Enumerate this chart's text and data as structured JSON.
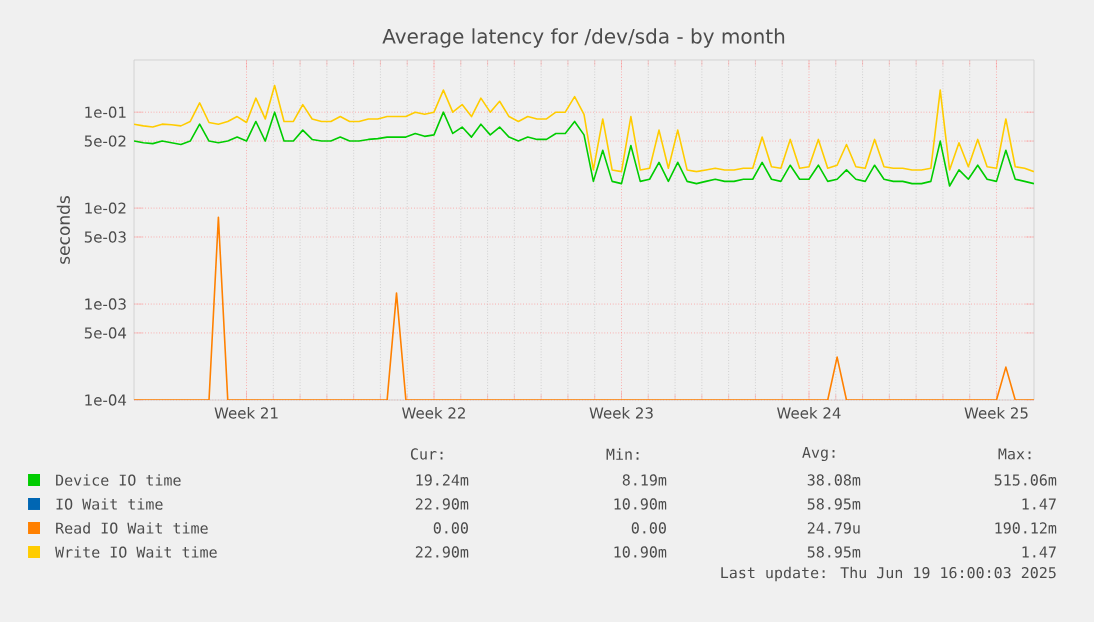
{
  "chart_data": {
    "type": "line",
    "title": "Average latency for /dev/sda - by month",
    "ylabel": "seconds",
    "log": "y",
    "grid": true,
    "legend": "bottom",
    "categories": [
      null,
      null,
      null,
      null,
      null,
      null,
      null,
      null,
      null,
      null,
      null,
      null,
      "Week 21",
      null,
      null,
      null,
      null,
      null,
      null,
      null,
      null,
      null,
      null,
      null,
      null,
      null,
      null,
      null,
      null,
      null,
      null,
      null,
      "Week 22",
      null,
      null,
      null,
      null,
      null,
      null,
      null,
      null,
      null,
      null,
      null,
      null,
      null,
      null,
      null,
      null,
      null,
      null,
      null,
      "Week 23",
      null,
      null,
      null,
      null,
      null,
      null,
      null,
      null,
      null,
      null,
      null,
      null,
      null,
      null,
      null,
      null,
      null,
      null,
      null,
      "Week 24",
      null,
      null,
      null,
      null,
      null,
      null,
      null,
      null,
      null,
      null,
      null,
      null,
      null,
      null,
      null,
      null,
      null,
      null,
      null,
      "Week 25",
      null,
      null,
      null,
      null
    ],
    "ylim": [
      0.0001,
      0.35
    ],
    "yticks": [
      {
        "value": 0.0001,
        "label": "1e-04"
      },
      {
        "value": 0.0005,
        "label": "5e-04"
      },
      {
        "value": 0.001,
        "label": "1e-03"
      },
      {
        "value": 0.005,
        "label": "5e-03"
      },
      {
        "value": 0.01,
        "label": "1e-02"
      },
      {
        "value": 0.05,
        "label": "5e-02"
      },
      {
        "value": 0.1,
        "label": "1e-01"
      }
    ],
    "series": [
      {
        "name": "Device IO time",
        "color": "#00cc00",
        "values": [
          0.05,
          0.048,
          0.047,
          0.05,
          0.048,
          0.046,
          0.05,
          0.075,
          0.05,
          0.048,
          0.05,
          0.055,
          0.05,
          0.08,
          0.05,
          0.1,
          0.05,
          0.05,
          0.065,
          0.052,
          0.05,
          0.05,
          0.055,
          0.05,
          0.05,
          0.052,
          0.053,
          0.055,
          0.055,
          0.055,
          0.06,
          0.056,
          0.058,
          0.1,
          0.06,
          0.07,
          0.055,
          0.075,
          0.058,
          0.07,
          0.055,
          0.05,
          0.055,
          0.052,
          0.052,
          0.06,
          0.06,
          0.08,
          0.058,
          0.019,
          0.04,
          0.019,
          0.018,
          0.045,
          0.019,
          0.02,
          0.03,
          0.019,
          0.03,
          0.019,
          0.018,
          0.019,
          0.02,
          0.019,
          0.019,
          0.02,
          0.02,
          0.03,
          0.02,
          0.019,
          0.028,
          0.02,
          0.02,
          0.028,
          0.019,
          0.02,
          0.025,
          0.02,
          0.019,
          0.028,
          0.02,
          0.019,
          0.019,
          0.018,
          0.018,
          0.019,
          0.05,
          0.017,
          0.025,
          0.02,
          0.028,
          0.02,
          0.019,
          0.04,
          0.02,
          0.019,
          0.018
        ]
      },
      {
        "name": "IO Wait time",
        "color": "#0066b3",
        "values": [
          null,
          null,
          null,
          null,
          null,
          null,
          null,
          null,
          null,
          null,
          null,
          null,
          null,
          null,
          null,
          null,
          null,
          null,
          null,
          null,
          null,
          null,
          null,
          null,
          null,
          null,
          null,
          null,
          null,
          null,
          null,
          null,
          null,
          null,
          null,
          null,
          null,
          null,
          null,
          null,
          null,
          null,
          null,
          null,
          null,
          null,
          null,
          null,
          null,
          null,
          null,
          null,
          null,
          null,
          null,
          null,
          null,
          null,
          null,
          null,
          null,
          null,
          null,
          null,
          null,
          null,
          null,
          null,
          null,
          null,
          null,
          null,
          null,
          null,
          null,
          null,
          null,
          null,
          null,
          null,
          null,
          null,
          null,
          null,
          null,
          null,
          null,
          null,
          null,
          null,
          null,
          null,
          null,
          null,
          null,
          null,
          null
        ]
      },
      {
        "name": "Read IO Wait time",
        "color": "#ff8000",
        "values": [
          0.0001,
          0.0001,
          0.0001,
          0.0001,
          0.0001,
          0.0001,
          0.0001,
          0.0001,
          0.0001,
          0.008,
          0.0001,
          0.0001,
          0.0001,
          0.0001,
          0.0001,
          0.0001,
          0.0001,
          0.0001,
          0.0001,
          0.0001,
          0.0001,
          0.0001,
          0.0001,
          0.0001,
          0.0001,
          0.0001,
          0.0001,
          0.0001,
          0.0013,
          0.0001,
          0.0001,
          0.0001,
          0.0001,
          0.0001,
          0.0001,
          0.0001,
          0.0001,
          0.0001,
          0.0001,
          0.0001,
          0.0001,
          0.0001,
          0.0001,
          0.0001,
          0.0001,
          0.0001,
          0.0001,
          0.0001,
          0.0001,
          0.0001,
          0.0001,
          0.0001,
          0.0001,
          0.0001,
          0.0001,
          0.0001,
          0.0001,
          0.0001,
          0.0001,
          0.0001,
          0.0001,
          0.0001,
          0.0001,
          0.0001,
          0.0001,
          0.0001,
          0.0001,
          0.0001,
          0.0001,
          0.0001,
          0.0001,
          0.0001,
          0.0001,
          0.0001,
          0.0001,
          0.00028,
          0.0001,
          0.0001,
          0.0001,
          0.0001,
          0.0001,
          0.0001,
          0.0001,
          0.0001,
          0.0001,
          0.0001,
          0.0001,
          0.0001,
          0.0001,
          0.0001,
          0.0001,
          0.0001,
          0.0001,
          0.00022,
          0.0001,
          0.0001,
          0.0001
        ]
      },
      {
        "name": "Write IO Wait time",
        "color": "#ffcc00",
        "values": [
          0.075,
          0.072,
          0.07,
          0.075,
          0.074,
          0.072,
          0.08,
          0.125,
          0.078,
          0.075,
          0.08,
          0.09,
          0.078,
          0.14,
          0.085,
          0.19,
          0.08,
          0.08,
          0.12,
          0.085,
          0.08,
          0.08,
          0.09,
          0.08,
          0.08,
          0.085,
          0.085,
          0.09,
          0.09,
          0.09,
          0.1,
          0.095,
          0.1,
          0.17,
          0.1,
          0.12,
          0.09,
          0.14,
          0.1,
          0.13,
          0.09,
          0.08,
          0.09,
          0.085,
          0.085,
          0.1,
          0.1,
          0.145,
          0.095,
          0.025,
          0.085,
          0.025,
          0.024,
          0.09,
          0.025,
          0.026,
          0.065,
          0.026,
          0.065,
          0.025,
          0.024,
          0.025,
          0.026,
          0.025,
          0.025,
          0.026,
          0.026,
          0.055,
          0.027,
          0.026,
          0.052,
          0.026,
          0.027,
          0.052,
          0.026,
          0.028,
          0.046,
          0.027,
          0.026,
          0.052,
          0.027,
          0.026,
          0.026,
          0.025,
          0.025,
          0.026,
          0.17,
          0.025,
          0.048,
          0.027,
          0.052,
          0.027,
          0.026,
          0.085,
          0.027,
          0.026,
          0.024
        ]
      }
    ],
    "annotations": [
      "Cur:",
      "Min:",
      "Avg:",
      "Max:",
      "19.24m",
      "8.19m",
      "38.08m",
      "515.06m",
      "22.90m",
      "10.90m",
      "58.95m",
      "1.47",
      "0.00",
      "0.00",
      "24.79u",
      "190.12m",
      "22.90m",
      "10.90m",
      "58.95m",
      "1.47",
      "Last update: Thu Jun 19 16:00:03 2025"
    ]
  }
}
